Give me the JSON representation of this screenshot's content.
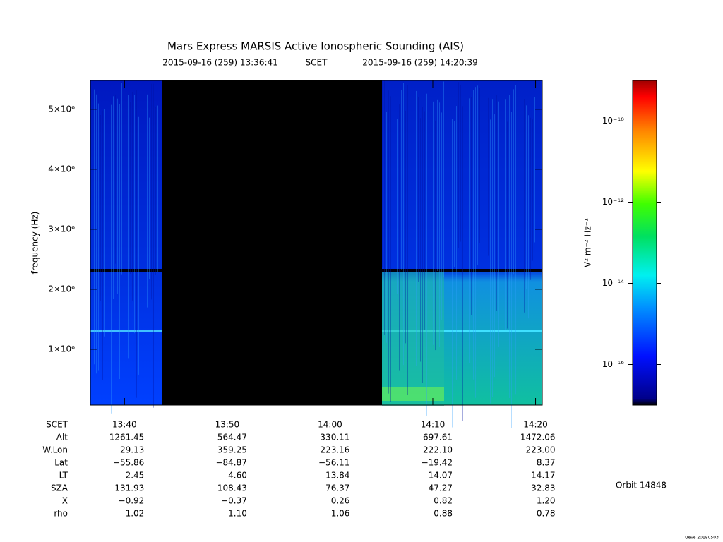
{
  "chart_data": {
    "type": "spectrogram",
    "title": "Mars Express MARSIS Active Ionospheric Sounding (AIS)",
    "subtitle_start": "2015-09-16 (259) 13:36:41",
    "time_system": "SCET",
    "subtitle_end": "2015-09-16 (259) 14:20:39",
    "ylabel": "frequency (Hz)",
    "xlim": [
      816.68,
      860.65
    ],
    "xticks": [
      {
        "value": 820,
        "label": "13:40"
      },
      {
        "value": 830,
        "label": "13:50"
      },
      {
        "value": 840,
        "label": "14:00"
      },
      {
        "value": 850,
        "label": "14:10"
      },
      {
        "value": 860,
        "label": "14:20"
      }
    ],
    "ylim": [
      70000,
      5480000
    ],
    "yticks": [
      {
        "value": 1000000,
        "label": "1×10⁶"
      },
      {
        "value": 2000000,
        "label": "2×10⁶"
      },
      {
        "value": 3000000,
        "label": "3×10⁶"
      },
      {
        "value": 4000000,
        "label": "4×10⁶"
      },
      {
        "value": 5000000,
        "label": "5×10⁶"
      }
    ],
    "colorbar": {
      "label": "V² m⁻² Hz⁻¹",
      "log": true,
      "lim": [
        1e-17,
        1e-09
      ],
      "ticks": [
        {
          "value": 1e-10,
          "label": "10⁻¹⁰"
        },
        {
          "value": 1e-12,
          "label": "10⁻¹²"
        },
        {
          "value": 1e-14,
          "label": "10⁻¹⁴"
        },
        {
          "value": 1e-16,
          "label": "10⁻¹⁶"
        }
      ]
    }
  },
  "ephemeris": {
    "scet_label": "SCET",
    "row_labels": [
      "Alt",
      "W.Lon",
      "Lat",
      "LT",
      "SZA",
      "X",
      "rho"
    ],
    "rows": [
      [
        "1261.45",
        "564.47",
        "330.11",
        "697.61",
        "1472.06"
      ],
      [
        "29.13",
        "359.25",
        "223.16",
        "222.10",
        "223.00"
      ],
      [
        "−55.86",
        "−84.87",
        "−56.11",
        "−19.42",
        "8.37"
      ],
      [
        "2.45",
        "4.60",
        "13.84",
        "14.07",
        "14.17"
      ],
      [
        "131.93",
        "108.43",
        "76.37",
        "47.27",
        "32.83"
      ],
      [
        "−0.92",
        "−0.37",
        "0.26",
        "0.82",
        "1.20"
      ],
      [
        "1.02",
        "1.10",
        "1.06",
        "0.88",
        "0.78"
      ]
    ]
  },
  "orbit": "Orbit 14848",
  "footer": "Ueve 20180503"
}
